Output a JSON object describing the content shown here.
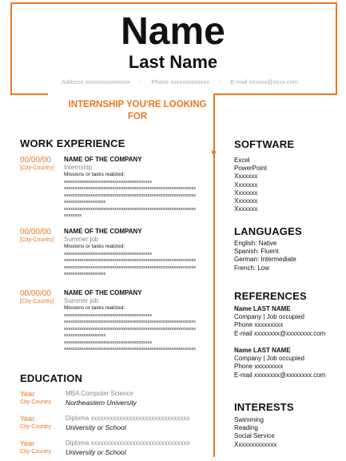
{
  "header": {
    "name": "Name",
    "last_name": "Last Name",
    "address": "Address xxxxxxxxxxxxxxx",
    "separator": "-",
    "phone": "Phone xxxxxxxxxxxxx",
    "email": "E-mail xxxxxx@xxxx.com"
  },
  "internship": {
    "line1": "INTERNSHIP YOU'RE LOOKING",
    "line2": "FOR"
  },
  "work": {
    "title": "WORK EXPERIENCE",
    "jobs": [
      {
        "date": "00/00/00",
        "city": "[City-Country]",
        "company": "NAME OF THE COMPANY",
        "role": "Internship",
        "missions_label": "Missions or tasks realized:",
        "lines": [
          "xxxxxxxxxxxxxxxxxxxxxxxxxxxxxxxxxxxxxxxx",
          "xxxxxxxxxxxxxxxxxxxxxxxxxxxxxxxxxxxxxxxxxxxxxxxxxxxxxxxxxxxx",
          "xxxxxxxxxxxxxxxxxxxxxxxxxxxxxxxxxxxxxxxxxxxxxxxxxxxxxxxxxxxx",
          "xxxxxxxxxxxxxxxxxxx",
          "xxxxxxxxxxxxxxxxxxxxxxxxxxxxxxxxxxxxxxxxxxxxxxxxxxxxxxxxxxxx",
          "xxxxxxxx"
        ]
      },
      {
        "date": "00/00/00",
        "city": "[City-Country]",
        "company": "NAME OF THE COMPANY",
        "role": "Summer job",
        "missions_label": "Missions or tasks realized:",
        "lines": [
          "xxxxxxxxxxxxxxxxxxxxxxxxxxxxxxxxxxxxxxxx",
          "xxxxxxxxxxxxxxxxxxxxxxxxxxxxxxxxxxxxxxxxxxxxxxxxxxxxxxxxxxxx",
          "xxxxxxxxxxxxxxxxxxxxxxxxxxxxxxxxxxxxxxxxxxxxxxxxxxxxxxxxxxxx",
          "xxxxxxxxxxxxxxxxxxx"
        ]
      },
      {
        "date": "00/00/00",
        "city": "[City-Country]",
        "company": "NAME OF THE COMPANY",
        "role": "Summer job",
        "missions_label": "Missions or tasks realized:",
        "lines": [
          "xxxxxxxxxxxxxxxxxxxxxxxxxxxxxxxxxxxxxxxx",
          "xxxxxxxxxxxxxxxxxxxxxxxxxxxxxxxxxxxxxxxxxxxxxxxxxxxxxxxxxxxx",
          "xxxxxxxxxxxxxxxxxxxxxxxxxxxxxxxxxxxxxxxxxxxxxxxxxxxxxxxxxxxx",
          "xxxxxxxxxxxxxxxxxxx",
          "xxxxxxxxxxxxxxxxxxxxxxxxxxxxxxxxxxxxxxxx",
          "xxxxxxxxxxxxxxxxxxxxxxxxxxxxxxxxxxxxxxxxxxxxxxxxxxxxxxxxxxxx"
        ]
      }
    ]
  },
  "education": {
    "title": "EDUCATION",
    "items": [
      {
        "year": "Year",
        "city": "City-Country",
        "degree": "MBA Computer Science",
        "school": "Northeastern University"
      },
      {
        "year": "Year",
        "city": "City-Country",
        "degree": "Diploma xxxxxxxxxxxxxxxxxxxxxxxxxxxxxxx",
        "school": "University or School"
      },
      {
        "year": "Year",
        "city": "City-Country",
        "degree": "Diploma xxxxxxxxxxxxxxxxxxxxxxxxxxxxxxx",
        "school": "University or School"
      }
    ]
  },
  "software": {
    "title": "SOFTWARE",
    "items": [
      "Excel",
      "PowerPoint",
      "Xxxxxxx",
      "Xxxxxxx",
      "Xxxxxxx",
      "Xxxxxxx",
      "Xxxxxxx"
    ]
  },
  "languages": {
    "title": "LANGUAGES",
    "items": [
      "English: Native",
      "Spanish: Fluent",
      "German: Intermediate",
      "French: Low"
    ]
  },
  "references": {
    "title": "REFERENCES",
    "items": [
      {
        "name": "Name LAST NAME",
        "company": "Company | Job occupied",
        "phone": "Phone xxxxxxxxx",
        "email": "E-mail xxxxxxxx@xxxxxxxx.com"
      },
      {
        "name": "Name LAST NAME",
        "company": "Company | Job occupied",
        "phone": "Phone xxxxxxxxx",
        "email": "E-mail xxxxxxxx@xxxxxxxx.com"
      }
    ]
  },
  "interests": {
    "title": "INTERESTS",
    "items": [
      "Swimming",
      "Reading",
      "Social Service",
      "Xxxxxxxxxxxxx"
    ]
  }
}
